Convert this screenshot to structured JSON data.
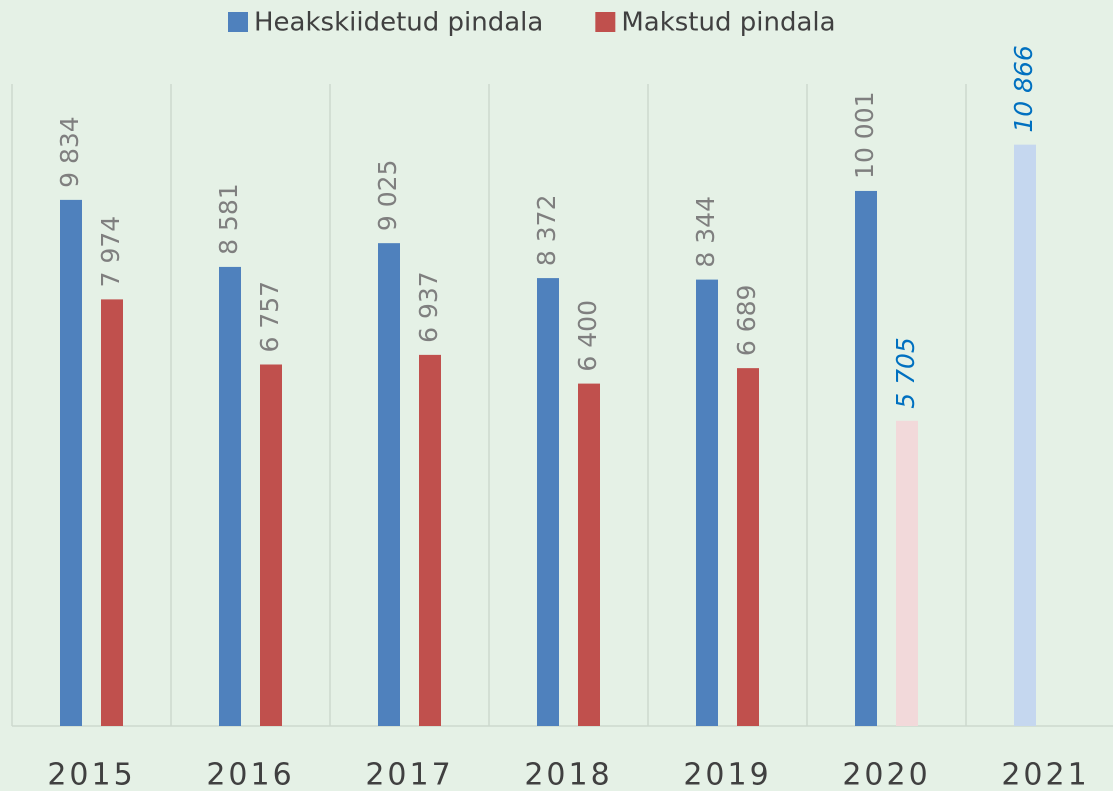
{
  "chart_data": {
    "type": "bar",
    "categories": [
      "2015",
      "2016",
      "2017",
      "2018",
      "2019",
      "2020",
      "2021"
    ],
    "series": [
      {
        "name": "Heakskiidetud pindala",
        "color": "#4f81bd",
        "values": [
          9834,
          8581,
          9025,
          8372,
          8344,
          10001,
          10866
        ],
        "value_labels": [
          "9 834",
          "8 581",
          "9 025",
          "8 372",
          "8 344",
          "10 001",
          "10 866"
        ],
        "colors": [
          "#4f81bd",
          "#4f81bd",
          "#4f81bd",
          "#4f81bd",
          "#4f81bd",
          "#4f81bd",
          "#c5d7ef"
        ],
        "label_colors": [
          "#7f7f7f",
          "#7f7f7f",
          "#7f7f7f",
          "#7f7f7f",
          "#7f7f7f",
          "#7f7f7f",
          "#0070c0"
        ],
        "label_styles": [
          "normal",
          "normal",
          "normal",
          "normal",
          "normal",
          "normal",
          "italic"
        ]
      },
      {
        "name": "Makstud pindala",
        "color": "#c0504d",
        "values": [
          7974,
          6757,
          6937,
          6400,
          6689,
          5705,
          null
        ],
        "value_labels": [
          "7 974",
          "6 757",
          "6 937",
          "6 400",
          "6 689",
          "5 705",
          null
        ],
        "colors": [
          "#c0504d",
          "#c0504d",
          "#c0504d",
          "#c0504d",
          "#c0504d",
          "#f2d9da",
          null
        ],
        "label_colors": [
          "#7f7f7f",
          "#7f7f7f",
          "#7f7f7f",
          "#7f7f7f",
          "#7f7f7f",
          "#0070c0",
          null
        ],
        "label_styles": [
          "normal",
          "normal",
          "normal",
          "normal",
          "normal",
          "italic",
          null
        ]
      }
    ],
    "ylim": [
      0,
      12000
    ],
    "grid": true,
    "legend": "top"
  }
}
